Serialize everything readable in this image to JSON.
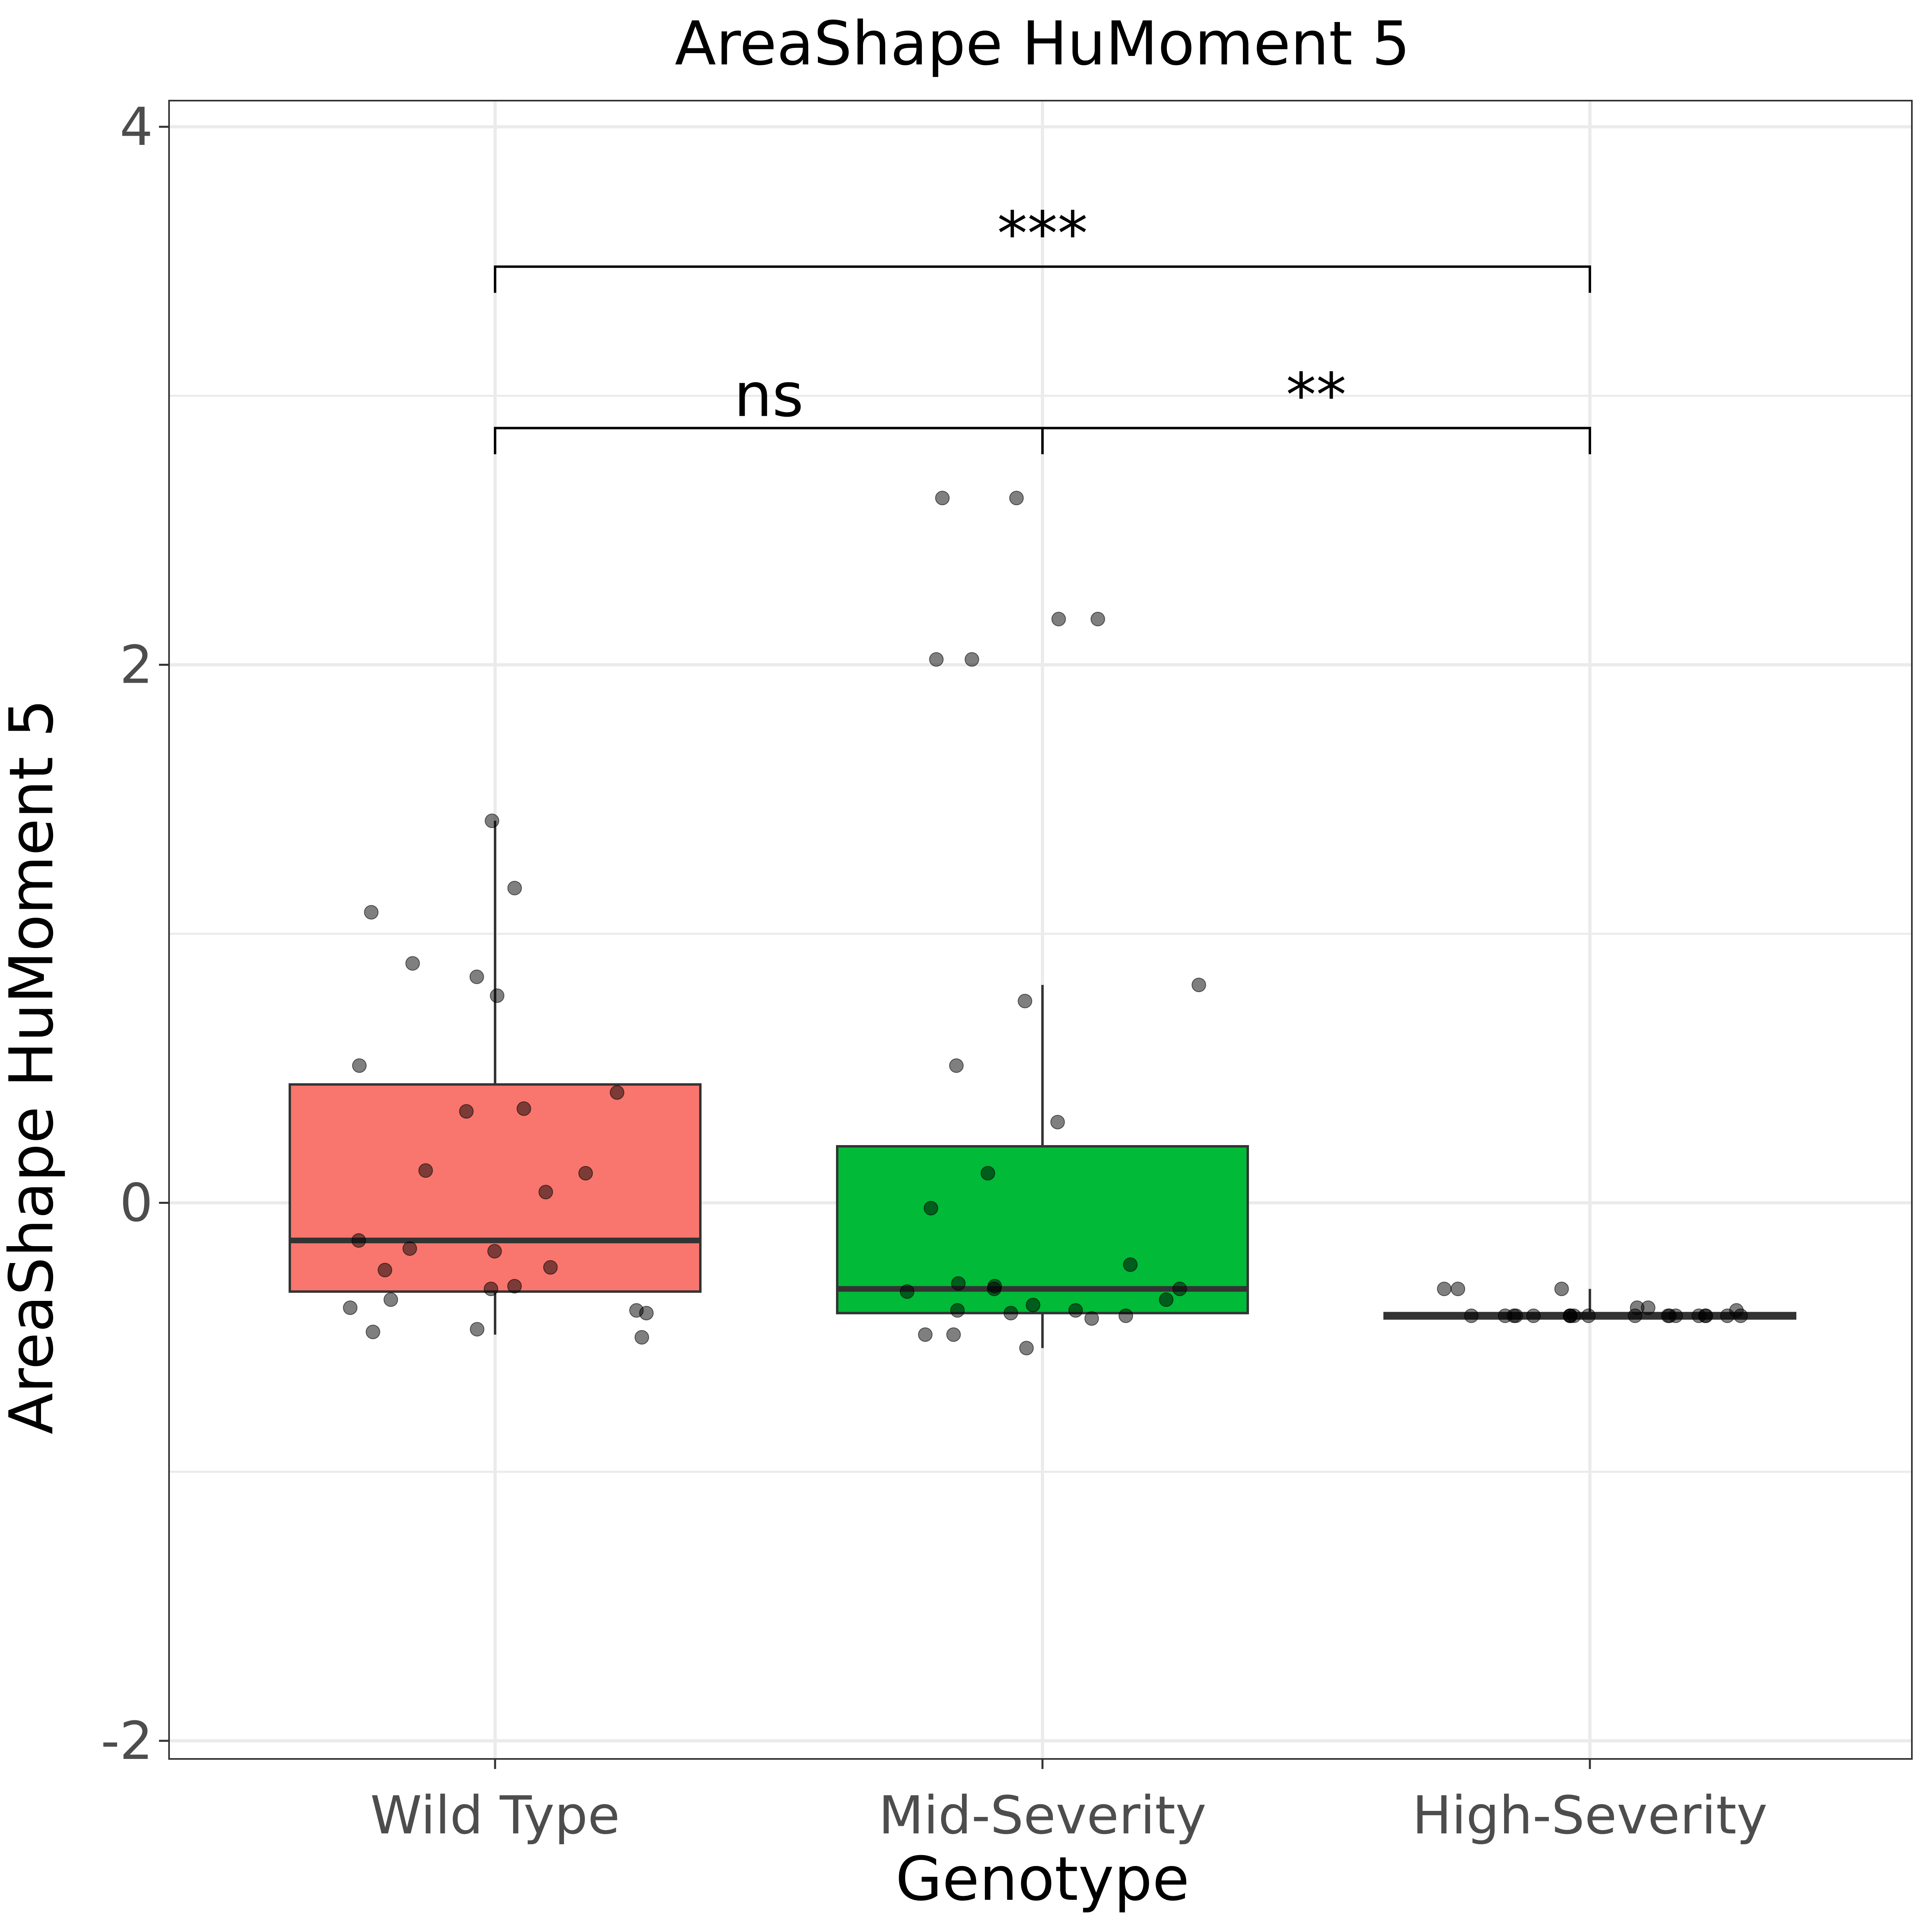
{
  "chart_data": {
    "type": "boxplot",
    "title": "AreaShape HuMoment 5",
    "xlabel": "Genotype",
    "ylabel": "AreaShape HuMoment 5",
    "ylim": [
      -2,
      4
    ],
    "yticks": [
      -2,
      0,
      2,
      4
    ],
    "grid": true,
    "categories": [
      "Wild Type",
      "Mid-Severity",
      "High-Severity"
    ],
    "colors": [
      "#F8766D",
      "#00BA38",
      "#999999"
    ],
    "boxes": [
      {
        "category": "Wild Type",
        "q1": -0.33,
        "median": -0.14,
        "q3": 0.44,
        "whisker_low": -0.49,
        "whisker_high": 1.42
      },
      {
        "category": "Mid-Severity",
        "q1": -0.41,
        "median": -0.32,
        "q3": 0.21,
        "whisker_low": -0.54,
        "whisker_high": 0.81
      },
      {
        "category": "High-Severity",
        "q1": -0.43,
        "median": -0.42,
        "q3": -0.41,
        "whisker_low": -0.43,
        "whisker_high": -0.32
      }
    ],
    "points": [
      {
        "category": "Wild Type",
        "values": [
          1.42,
          1.17,
          1.08,
          0.89,
          0.84,
          0.77,
          0.51,
          0.41,
          0.35,
          0.34,
          0.12,
          0.11,
          0.04,
          -0.14,
          -0.18,
          -0.17,
          -0.24,
          -0.25,
          -0.31,
          -0.32,
          -0.36,
          -0.39,
          -0.4,
          -0.41,
          -0.48,
          -0.47,
          -0.5
        ]
      },
      {
        "category": "Mid-Severity",
        "values": [
          2.62,
          2.62,
          2.17,
          2.17,
          2.02,
          2.02,
          0.81,
          0.75,
          0.51,
          0.3,
          0.11,
          -0.02,
          -0.23,
          -0.31,
          -0.32,
          -0.33,
          -0.32,
          -0.3,
          -0.36,
          -0.38,
          -0.4,
          -0.4,
          -0.41,
          -0.42,
          -0.43,
          -0.49,
          -0.49,
          -0.54
        ]
      },
      {
        "category": "High-Severity",
        "values": [
          -0.32,
          -0.32,
          -0.32,
          -0.39,
          -0.39,
          -0.4,
          -0.42,
          -0.42,
          -0.42,
          -0.42,
          -0.42,
          -0.42,
          -0.42,
          -0.42,
          -0.42,
          -0.42,
          -0.42,
          -0.42,
          -0.42,
          -0.42,
          -0.42,
          -0.42,
          -0.42,
          -0.42,
          -0.42
        ]
      }
    ],
    "comparisons": [
      {
        "from": "Wild Type",
        "to": "Mid-Severity",
        "y": 2.88,
        "label": "ns"
      },
      {
        "from": "Mid-Severity",
        "to": "High-Severity",
        "y": 2.88,
        "label": "**"
      },
      {
        "from": "Wild Type",
        "to": "High-Severity",
        "y": 3.48,
        "label": "***"
      }
    ]
  }
}
